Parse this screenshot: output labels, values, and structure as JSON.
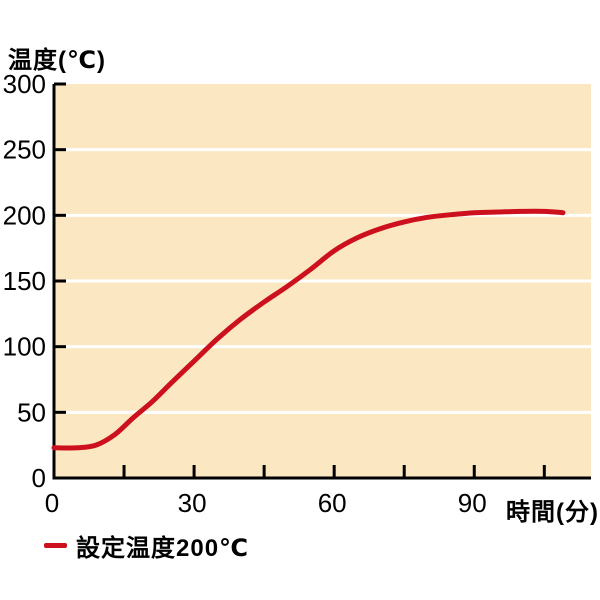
{
  "chart_data": {
    "type": "line",
    "title": "",
    "ylabel": "温度(℃)",
    "xlabel": "時間(分)",
    "xlim": [
      0,
      115
    ],
    "ylim": [
      0,
      300
    ],
    "x_major_ticks": [
      0,
      30,
      60,
      90
    ],
    "x_minor_tick_step": 15,
    "x_minor_tick_max": 105,
    "y_ticks": [
      0,
      50,
      100,
      150,
      200,
      250,
      300
    ],
    "grid_values": [
      50,
      100,
      150,
      200,
      250
    ],
    "grid": "on",
    "legend_position": "bottom-left",
    "legend": {
      "label": "設定温度200℃"
    },
    "series": [
      {
        "name": "設定温度200℃",
        "color": "#cd101e",
        "points": [
          [
            0,
            23
          ],
          [
            5,
            23
          ],
          [
            9,
            25
          ],
          [
            13,
            33
          ],
          [
            17,
            46
          ],
          [
            21,
            58
          ],
          [
            25,
            72
          ],
          [
            30,
            89
          ],
          [
            35,
            106
          ],
          [
            40,
            121
          ],
          [
            45,
            134
          ],
          [
            50,
            146
          ],
          [
            55,
            159
          ],
          [
            60,
            173
          ],
          [
            65,
            183
          ],
          [
            70,
            190
          ],
          [
            75,
            195
          ],
          [
            80,
            198.5
          ],
          [
            85,
            200.5
          ],
          [
            90,
            202
          ],
          [
            95,
            202.5
          ],
          [
            100,
            203
          ],
          [
            105,
            203
          ],
          [
            109,
            202
          ]
        ]
      }
    ],
    "colors": {
      "plot_background": "#fbe8c2",
      "grid": "#ffffff",
      "axis": "#000000",
      "tick_label": "#000000"
    }
  }
}
